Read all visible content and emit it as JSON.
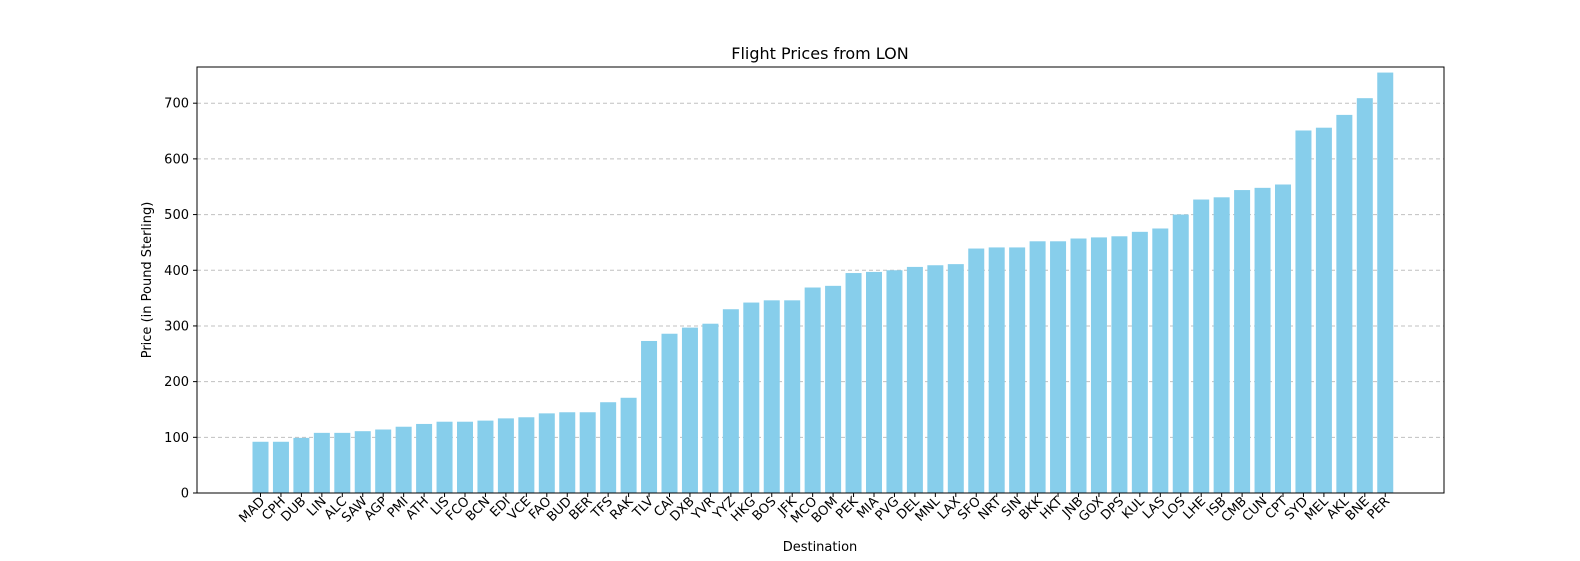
{
  "chart_data": {
    "type": "bar",
    "title": "Flight Prices from LON",
    "xlabel": "Destination",
    "ylabel": "Price (in Pound Sterling)",
    "ylim": [
      0,
      765
    ],
    "yticks": [
      0,
      100,
      200,
      300,
      400,
      500,
      600,
      700
    ],
    "grid": "horizontal-dashed",
    "bar_color": "#87ceeb",
    "categories": [
      "MAD",
      "CPH",
      "DUB",
      "LIN",
      "ALC",
      "SAW",
      "AGP",
      "PMI",
      "ATH",
      "LIS",
      "FCO",
      "BCN",
      "EDI",
      "VCE",
      "FAO",
      "BUD",
      "BER",
      "TFS",
      "RAK",
      "TLV",
      "CAI",
      "DXB",
      "YVR",
      "YYZ",
      "HKG",
      "BOS",
      "JFK",
      "MCO",
      "BOM",
      "PEK",
      "MIA",
      "PVG",
      "DEL",
      "MNL",
      "LAX",
      "SFO",
      "NRT",
      "SIN",
      "BKK",
      "HKT",
      "JNB",
      "GOX",
      "DPS",
      "KUL",
      "LAS",
      "LOS",
      "LHE",
      "ISB",
      "CMB",
      "CUN",
      "CPT",
      "SYD",
      "MEL",
      "AKL",
      "BNE",
      "PER"
    ],
    "values": [
      92,
      92,
      99,
      108,
      108,
      111,
      114,
      119,
      124,
      128,
      128,
      130,
      134,
      136,
      143,
      145,
      145,
      163,
      171,
      273,
      286,
      297,
      304,
      330,
      342,
      346,
      346,
      369,
      372,
      395,
      397,
      400,
      406,
      409,
      411,
      439,
      441,
      441,
      452,
      452,
      457,
      459,
      461,
      469,
      475,
      500,
      527,
      531,
      544,
      548,
      554,
      651,
      656,
      679,
      709,
      755
    ]
  }
}
